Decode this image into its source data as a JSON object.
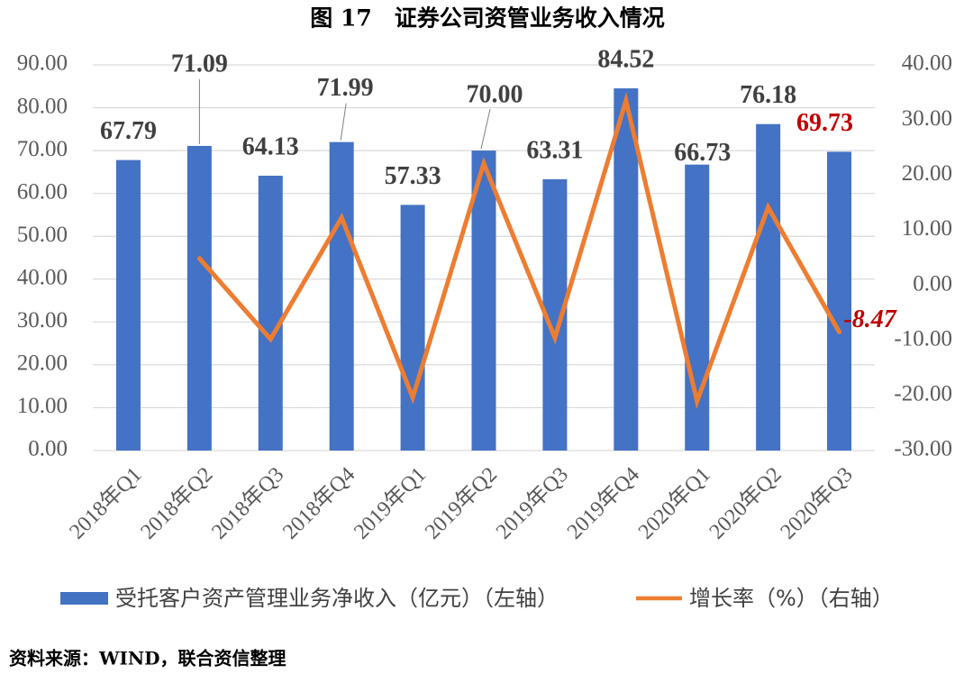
{
  "source": "资料来源：WIND，联合资信整理",
  "colors": {
    "bar": "#4472C4",
    "line": "#ED7D31",
    "highlight_label": "#C00000",
    "data_label": "#404040",
    "axis_text": "#595959",
    "grid": "#D9D9D9",
    "leader": "#7F7F7F"
  },
  "chart_data": {
    "type": "bar",
    "title": "图 17　证券公司资管业务收入情况",
    "categories": [
      "2018年Q1",
      "2018年Q2",
      "2018年Q3",
      "2018年Q4",
      "2019年Q1",
      "2019年Q2",
      "2019年Q3",
      "2019年Q4",
      "2020年Q1",
      "2020年Q2",
      "2020年Q3"
    ],
    "series": [
      {
        "name": "受托客户资产管理业务净收入（亿元）（左轴）",
        "type": "bar",
        "y_axis": 0,
        "values": [
          67.79,
          71.09,
          64.13,
          71.99,
          57.33,
          70.0,
          63.31,
          84.52,
          66.73,
          76.18,
          69.73
        ],
        "labeled_points": [
          0,
          1,
          2,
          3,
          4,
          5,
          6,
          7,
          8,
          9,
          10
        ],
        "highlighted_points": [
          10
        ]
      },
      {
        "name": "增长率（%）（右轴）",
        "type": "line",
        "y_axis": 1,
        "values": [
          null,
          4.87,
          -9.79,
          12.26,
          -20.36,
          22.1,
          -9.56,
          33.5,
          -21.05,
          14.16,
          -8.47
        ],
        "labeled_points": [
          10
        ],
        "highlighted_points": [
          10
        ]
      }
    ],
    "y_axes": [
      {
        "ylim": [
          0,
          90
        ],
        "ticks": [
          "0.00",
          "10.00",
          "20.00",
          "30.00",
          "40.00",
          "50.00",
          "60.00",
          "70.00",
          "80.00",
          "90.00"
        ]
      },
      {
        "ylim": [
          -30,
          40
        ],
        "ticks": [
          "-30.00",
          "-20.00",
          "-10.00",
          "0.00",
          "10.00",
          "20.00",
          "30.00",
          "40.00"
        ]
      }
    ],
    "grid": true,
    "legend": "bottom"
  }
}
